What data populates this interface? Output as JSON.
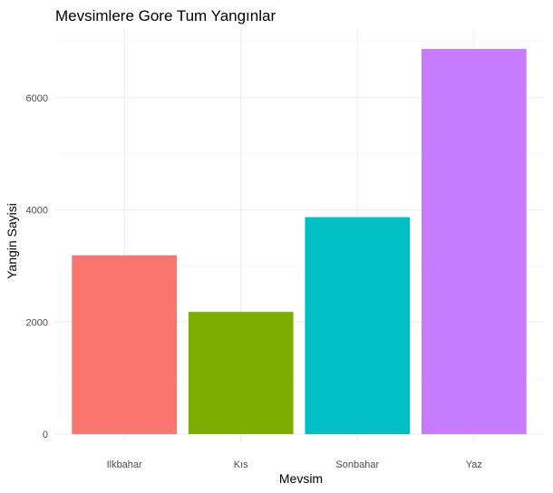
{
  "chart_data": {
    "type": "bar",
    "title": "Mevsimlere Gore Tum Yangınlar",
    "xlabel": "Mevsim",
    "ylabel": "Yangin Sayisi",
    "categories": [
      "Ilkbahar",
      "Kıs",
      "Sonbahar",
      "Yaz"
    ],
    "values": [
      3190,
      2180,
      3870,
      6870
    ],
    "colors": [
      "#F8766D",
      "#7CAE00",
      "#00BFC4",
      "#C77CFF"
    ],
    "y_ticks": [
      0,
      2000,
      4000,
      6000
    ],
    "ylim": [
      0,
      7200
    ],
    "grid": true,
    "legend": "none"
  }
}
